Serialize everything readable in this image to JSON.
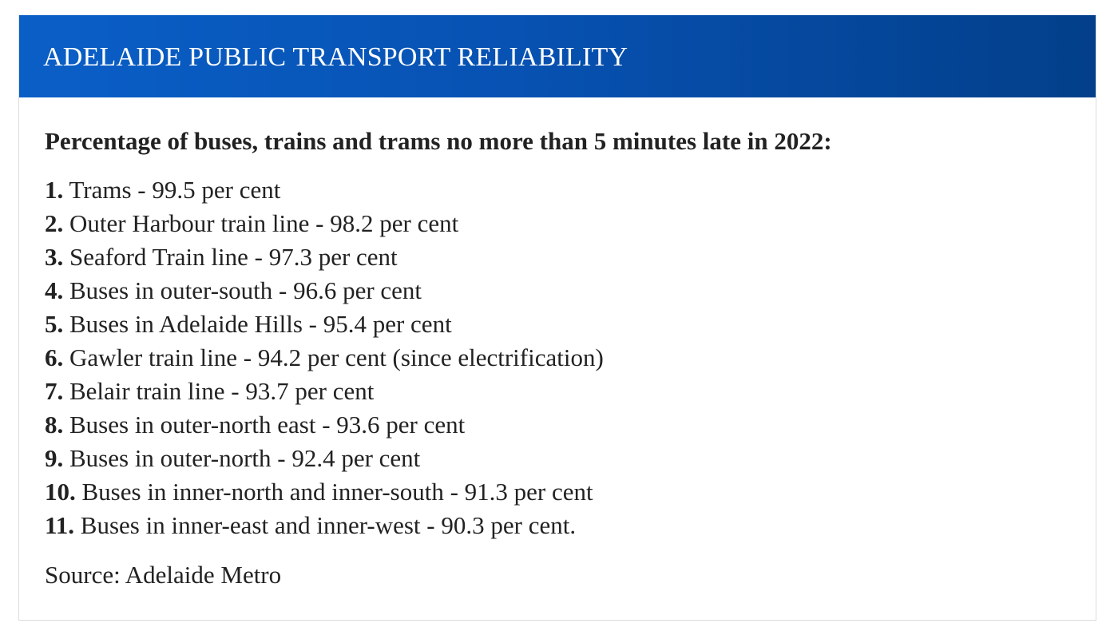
{
  "header": {
    "title": "ADELAIDE PUBLIC TRANSPORT RELIABILITY"
  },
  "intro": "Percentage of buses, trains and trams no more than 5 minutes late in 2022:",
  "items": [
    {
      "num": "1.",
      "text": " Trams - 99.5 per cent"
    },
    {
      "num": "2.",
      "text": " Outer Harbour train line - 98.2 per cent"
    },
    {
      "num": "3.",
      "text": " Seaford Train line - 97.3 per cent"
    },
    {
      "num": "4.",
      "text": " Buses in outer-south - 96.6 per cent"
    },
    {
      "num": "5.",
      "text": " Buses in Adelaide Hills - 95.4 per cent"
    },
    {
      "num": "6.",
      "text": " Gawler train line - 94.2 per cent (since electrification)"
    },
    {
      "num": "7.",
      "text": " Belair train line - 93.7 per cent"
    },
    {
      "num": "8.",
      "text": " Buses in outer-north east - 93.6 per cent"
    },
    {
      "num": "9.",
      "text": " Buses in outer-north - 92.4 per cent"
    },
    {
      "num": "10.",
      "text": " Buses in inner-north and inner-south - 91.3 per cent"
    },
    {
      "num": "11.",
      "text": " Buses in inner-east and inner-west - 90.3 per cent."
    }
  ],
  "source": "Source: Adelaide Metro",
  "colors": {
    "header_start": "#0a5fc7",
    "header_end": "#033f8a",
    "text": "#222222"
  }
}
